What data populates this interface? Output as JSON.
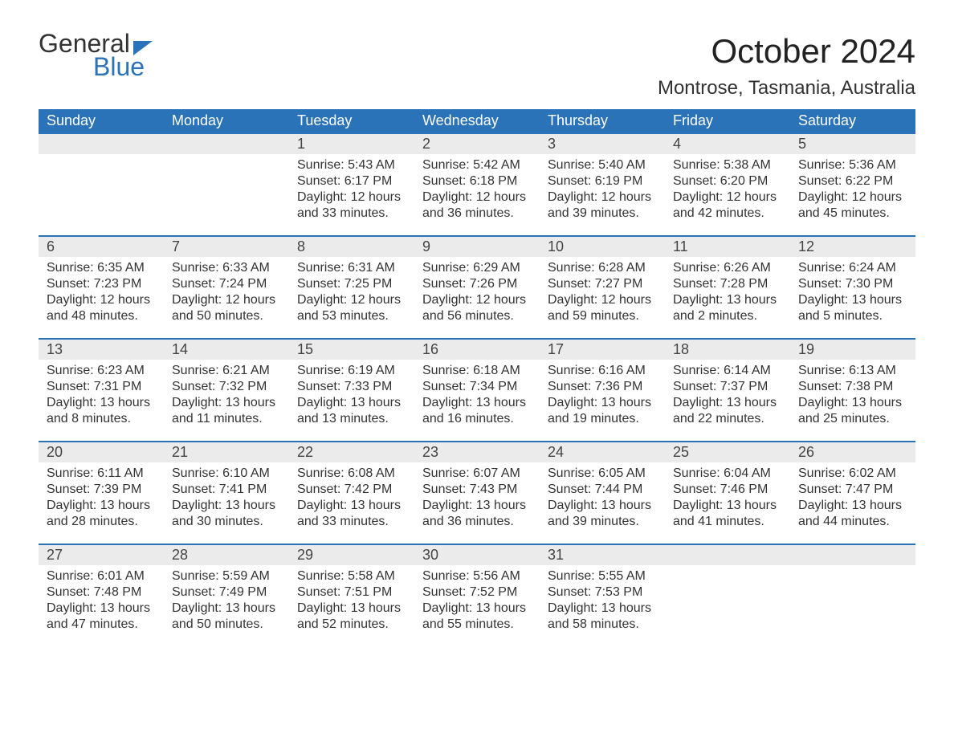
{
  "logo": {
    "word1": "General",
    "word2": "Blue"
  },
  "title": "October 2024",
  "location": "Montrose, Tasmania, Australia",
  "colors": {
    "header_bg": "#2a73b8",
    "header_text": "#ffffff",
    "daynum_bg": "#ebebeb",
    "week_border": "#2a73b8",
    "body_text": "#333333",
    "logo_accent": "#2a73b8"
  },
  "typography": {
    "title_fontsize": 42,
    "location_fontsize": 24,
    "header_fontsize": 18,
    "daynum_fontsize": 18,
    "content_fontsize": 16,
    "font_family": "Arial"
  },
  "day_labels": [
    "Sunday",
    "Monday",
    "Tuesday",
    "Wednesday",
    "Thursday",
    "Friday",
    "Saturday"
  ],
  "label_prefixes": {
    "sunrise": "Sunrise: ",
    "sunset": "Sunset: ",
    "daylight": "Daylight: "
  },
  "weeks": [
    [
      null,
      null,
      {
        "n": "1",
        "sunrise": "5:43 AM",
        "sunset": "6:17 PM",
        "daylight": "12 hours and 33 minutes."
      },
      {
        "n": "2",
        "sunrise": "5:42 AM",
        "sunset": "6:18 PM",
        "daylight": "12 hours and 36 minutes."
      },
      {
        "n": "3",
        "sunrise": "5:40 AM",
        "sunset": "6:19 PM",
        "daylight": "12 hours and 39 minutes."
      },
      {
        "n": "4",
        "sunrise": "5:38 AM",
        "sunset": "6:20 PM",
        "daylight": "12 hours and 42 minutes."
      },
      {
        "n": "5",
        "sunrise": "5:36 AM",
        "sunset": "6:22 PM",
        "daylight": "12 hours and 45 minutes."
      }
    ],
    [
      {
        "n": "6",
        "sunrise": "6:35 AM",
        "sunset": "7:23 PM",
        "daylight": "12 hours and 48 minutes."
      },
      {
        "n": "7",
        "sunrise": "6:33 AM",
        "sunset": "7:24 PM",
        "daylight": "12 hours and 50 minutes."
      },
      {
        "n": "8",
        "sunrise": "6:31 AM",
        "sunset": "7:25 PM",
        "daylight": "12 hours and 53 minutes."
      },
      {
        "n": "9",
        "sunrise": "6:29 AM",
        "sunset": "7:26 PM",
        "daylight": "12 hours and 56 minutes."
      },
      {
        "n": "10",
        "sunrise": "6:28 AM",
        "sunset": "7:27 PM",
        "daylight": "12 hours and 59 minutes."
      },
      {
        "n": "11",
        "sunrise": "6:26 AM",
        "sunset": "7:28 PM",
        "daylight": "13 hours and 2 minutes."
      },
      {
        "n": "12",
        "sunrise": "6:24 AM",
        "sunset": "7:30 PM",
        "daylight": "13 hours and 5 minutes."
      }
    ],
    [
      {
        "n": "13",
        "sunrise": "6:23 AM",
        "sunset": "7:31 PM",
        "daylight": "13 hours and 8 minutes."
      },
      {
        "n": "14",
        "sunrise": "6:21 AM",
        "sunset": "7:32 PM",
        "daylight": "13 hours and 11 minutes."
      },
      {
        "n": "15",
        "sunrise": "6:19 AM",
        "sunset": "7:33 PM",
        "daylight": "13 hours and 13 minutes."
      },
      {
        "n": "16",
        "sunrise": "6:18 AM",
        "sunset": "7:34 PM",
        "daylight": "13 hours and 16 minutes."
      },
      {
        "n": "17",
        "sunrise": "6:16 AM",
        "sunset": "7:36 PM",
        "daylight": "13 hours and 19 minutes."
      },
      {
        "n": "18",
        "sunrise": "6:14 AM",
        "sunset": "7:37 PM",
        "daylight": "13 hours and 22 minutes."
      },
      {
        "n": "19",
        "sunrise": "6:13 AM",
        "sunset": "7:38 PM",
        "daylight": "13 hours and 25 minutes."
      }
    ],
    [
      {
        "n": "20",
        "sunrise": "6:11 AM",
        "sunset": "7:39 PM",
        "daylight": "13 hours and 28 minutes."
      },
      {
        "n": "21",
        "sunrise": "6:10 AM",
        "sunset": "7:41 PM",
        "daylight": "13 hours and 30 minutes."
      },
      {
        "n": "22",
        "sunrise": "6:08 AM",
        "sunset": "7:42 PM",
        "daylight": "13 hours and 33 minutes."
      },
      {
        "n": "23",
        "sunrise": "6:07 AM",
        "sunset": "7:43 PM",
        "daylight": "13 hours and 36 minutes."
      },
      {
        "n": "24",
        "sunrise": "6:05 AM",
        "sunset": "7:44 PM",
        "daylight": "13 hours and 39 minutes."
      },
      {
        "n": "25",
        "sunrise": "6:04 AM",
        "sunset": "7:46 PM",
        "daylight": "13 hours and 41 minutes."
      },
      {
        "n": "26",
        "sunrise": "6:02 AM",
        "sunset": "7:47 PM",
        "daylight": "13 hours and 44 minutes."
      }
    ],
    [
      {
        "n": "27",
        "sunrise": "6:01 AM",
        "sunset": "7:48 PM",
        "daylight": "13 hours and 47 minutes."
      },
      {
        "n": "28",
        "sunrise": "5:59 AM",
        "sunset": "7:49 PM",
        "daylight": "13 hours and 50 minutes."
      },
      {
        "n": "29",
        "sunrise": "5:58 AM",
        "sunset": "7:51 PM",
        "daylight": "13 hours and 52 minutes."
      },
      {
        "n": "30",
        "sunrise": "5:56 AM",
        "sunset": "7:52 PM",
        "daylight": "13 hours and 55 minutes."
      },
      {
        "n": "31",
        "sunrise": "5:55 AM",
        "sunset": "7:53 PM",
        "daylight": "13 hours and 58 minutes."
      },
      null,
      null
    ]
  ]
}
